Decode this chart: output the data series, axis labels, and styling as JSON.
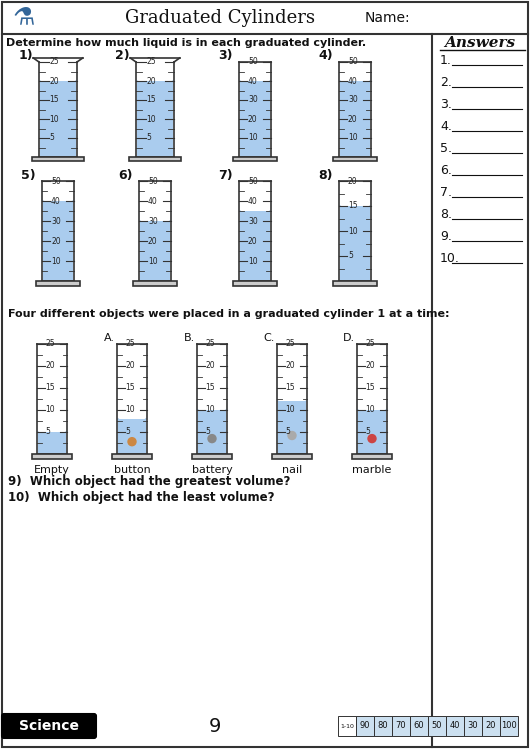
{
  "title": "Graduated Cylinders",
  "name_label": "Name:",
  "instruction": "Determine how much liquid is in each graduated cylinder.",
  "answers_header": "Answers",
  "page_number": "9",
  "subject": "Science",
  "score_labels": [
    "1-10",
    "90",
    "80",
    "70",
    "60",
    "50",
    "40",
    "30",
    "20",
    "100"
  ],
  "cylinders_row1": [
    {
      "number": "1)",
      "scale_max": 25,
      "scale_min": 0,
      "scale_step": 5,
      "liquid_level": 20,
      "type": "beaker"
    },
    {
      "number": "2)",
      "scale_max": 25,
      "scale_min": 0,
      "scale_step": 5,
      "liquid_level": 20,
      "type": "beaker"
    },
    {
      "number": "3)",
      "scale_max": 50,
      "scale_min": 0,
      "scale_step": 10,
      "liquid_level": 40,
      "type": "cylinder"
    },
    {
      "number": "4)",
      "scale_max": 50,
      "scale_min": 0,
      "scale_step": 10,
      "liquid_level": 40,
      "type": "cylinder"
    }
  ],
  "cylinders_row2": [
    {
      "number": "5)",
      "scale_max": 50,
      "scale_min": 0,
      "scale_step": 10,
      "liquid_level": 40,
      "type": "cylinder"
    },
    {
      "number": "6)",
      "scale_max": 50,
      "scale_min": 0,
      "scale_step": 10,
      "liquid_level": 30,
      "type": "cylinder"
    },
    {
      "number": "7)",
      "scale_max": 50,
      "scale_min": 0,
      "scale_step": 10,
      "liquid_level": 35,
      "type": "cylinder"
    },
    {
      "number": "8)",
      "scale_max": 20,
      "scale_min": 0,
      "scale_step": 5,
      "liquid_level": 15,
      "type": "cylinder"
    }
  ],
  "objects_row": [
    {
      "label": "Empty",
      "liquid_level": 5,
      "has_object": false,
      "object_color": null
    },
    {
      "label": "button",
      "liquid_level": 8,
      "has_object": true,
      "object_color": "#cc8844"
    },
    {
      "label": "battery",
      "liquid_level": 10,
      "has_object": true,
      "object_color": "#888888"
    },
    {
      "label": "nail",
      "liquid_level": 12,
      "has_object": true,
      "object_color": "#aaaaaa"
    },
    {
      "label": "marble",
      "liquid_level": 10,
      "has_object": true,
      "object_color": "#cc4444"
    }
  ],
  "q9": "9)  Which object had the greatest volume?",
  "q10": "10)  Which object had the least volume?",
  "objects_section_title": "Four different objects were placed in a graduated cylinder 1 at a time:",
  "bg_color": "#ffffff",
  "liquid_color": "#aaccee",
  "cylinder_outline": "#333333",
  "scale_color": "#444444",
  "obj_scale_max": 25,
  "obj_scale_min": 0,
  "obj_scale_step": 5
}
